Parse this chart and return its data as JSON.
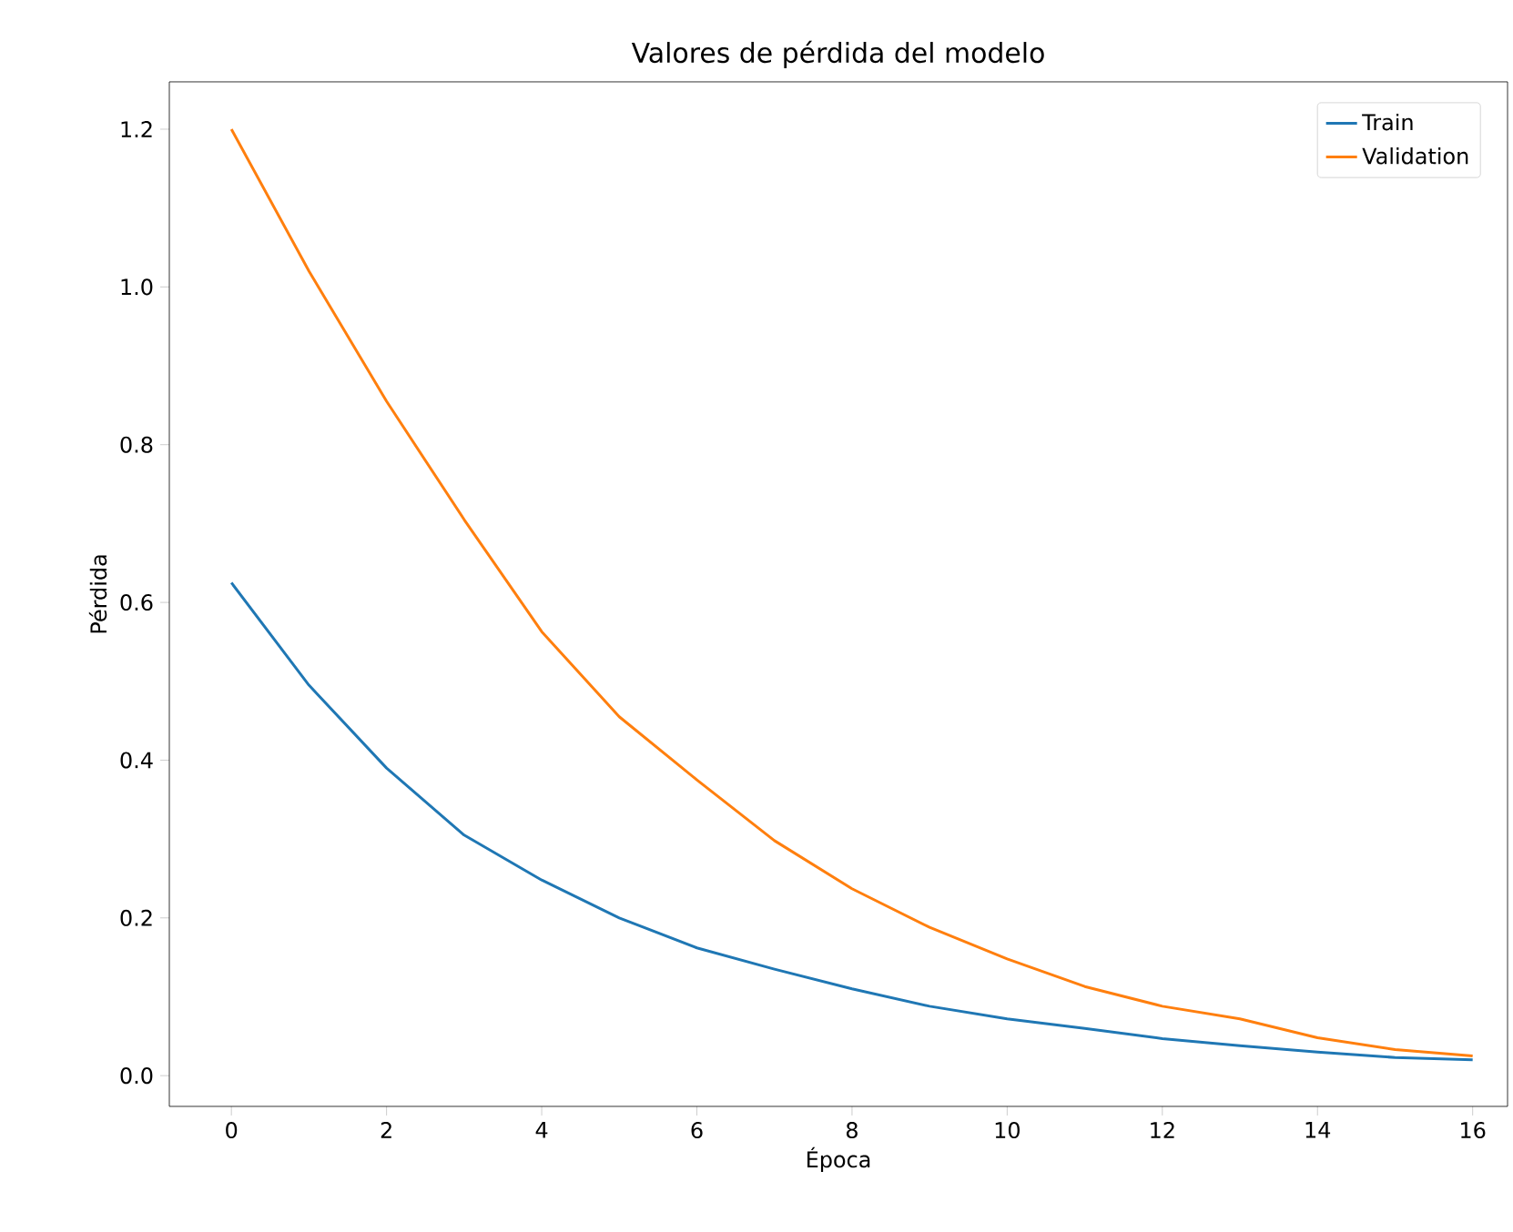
{
  "chart_data": {
    "type": "line",
    "title": "Valores de pérdida del modelo",
    "xlabel": "Época",
    "ylabel": "Pérdida",
    "x": [
      0,
      1,
      2,
      3,
      4,
      5,
      6,
      7,
      8,
      9,
      10,
      11,
      12,
      13,
      14,
      15,
      16
    ],
    "series": [
      {
        "name": "Train",
        "color": "#1f77b4",
        "values": [
          0.625,
          0.495,
          0.39,
          0.305,
          0.248,
          0.2,
          0.162,
          0.135,
          0.11,
          0.088,
          0.072,
          0.06,
          0.047,
          0.038,
          0.03,
          0.023,
          0.02
        ]
      },
      {
        "name": "Validation",
        "color": "#ff7f0e",
        "values": [
          1.2,
          1.02,
          0.855,
          0.705,
          0.563,
          0.455,
          0.375,
          0.298,
          0.237,
          0.188,
          0.148,
          0.113,
          0.088,
          0.072,
          0.048,
          0.033,
          0.025
        ]
      }
    ],
    "xlim": [
      -0.8,
      16.45
    ],
    "ylim": [
      -0.039,
      1.26
    ],
    "xticks": [
      0,
      2,
      4,
      6,
      8,
      10,
      12,
      14,
      16
    ],
    "yticks": [
      {
        "value": 0,
        "label": "0.0"
      },
      {
        "value": 0.2,
        "label": "0.2"
      },
      {
        "value": 0.4,
        "label": "0.4"
      },
      {
        "value": 0.6,
        "label": "0.6"
      },
      {
        "value": 0.8,
        "label": "0.8"
      },
      {
        "value": 1.0,
        "label": "1.0"
      },
      {
        "value": 1.2,
        "label": "1.2"
      }
    ],
    "legend": "top right",
    "grid": false,
    "marker": "none",
    "line_style": "solid"
  }
}
